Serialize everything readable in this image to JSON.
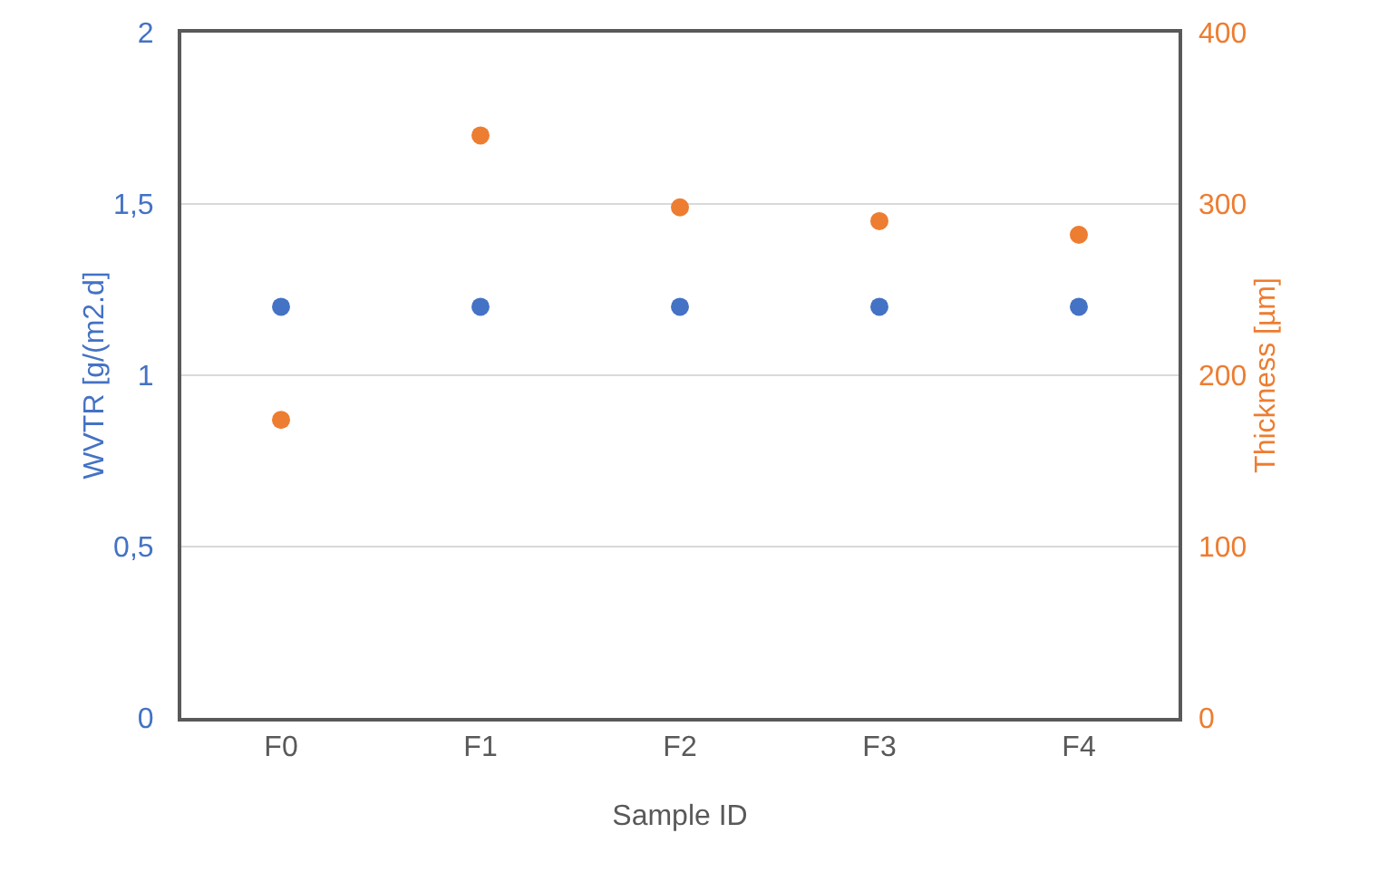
{
  "chart_data": {
    "type": "scatter",
    "xlabel": "Sample ID",
    "ylabel": "WVTR [g/(m2.d]",
    "y2label": "Thickness [µm]",
    "categories": [
      "F0",
      "F1",
      "F2",
      "F3",
      "F4"
    ],
    "series": [
      {
        "color": "#4472c4",
        "values": [
          1.2,
          1.2,
          1.2,
          1.2,
          1.2
        ]
      },
      {
        "color": "#ed7d31",
        "axis": "y2",
        "values": [
          174,
          340,
          298,
          290,
          282
        ]
      }
    ],
    "ylim": [
      0,
      2
    ],
    "yticks": [
      0,
      {
        "value": 0.5,
        "label": "0,5"
      },
      1,
      {
        "value": 1.5,
        "label": "1,5"
      },
      2
    ],
    "y2lim": [
      0,
      400
    ],
    "y2ticks": [
      0,
      100,
      200,
      300,
      400
    ],
    "grid": "y",
    "marker": "circle"
  }
}
